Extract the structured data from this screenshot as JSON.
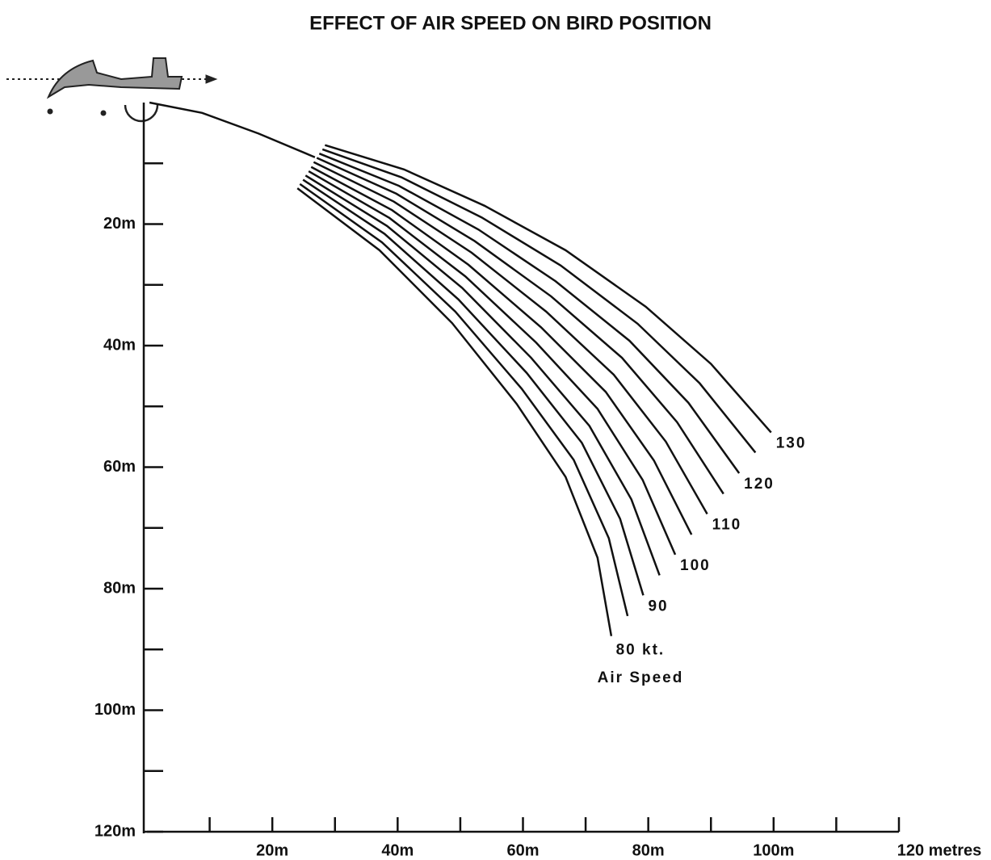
{
  "chart_data": {
    "type": "line",
    "title": "EFFECT OF AIR SPEED ON BIRD POSITION",
    "annotation": "Air Speed",
    "color": "#111111",
    "xlim": [
      0,
      120
    ],
    "ylim": [
      0,
      120
    ],
    "y_inverted": true,
    "xticks": [
      20,
      40,
      60,
      80,
      100,
      {
        "value": 120,
        "label": "120 metres"
      }
    ],
    "xminor": [
      10,
      30,
      50,
      70,
      90,
      110
    ],
    "yticks": [
      {
        "value": 20,
        "label": "20m"
      },
      {
        "value": 40,
        "label": "40m"
      },
      {
        "value": 60,
        "label": "60m"
      },
      {
        "value": 80,
        "label": "80m"
      },
      {
        "value": 100,
        "label": "100m"
      },
      {
        "value": 120,
        "label": "120m"
      }
    ],
    "yminor": [
      10,
      30,
      50,
      70,
      90,
      110
    ],
    "xtick_labels": [
      "20m",
      "40m",
      "60m",
      "80m",
      "100m"
    ],
    "series": [
      {
        "name": "80 kt.",
        "x": [
          24.0,
          37.1,
          48.7,
          59.0,
          66.8,
          71.9,
          74.1
        ],
        "values": [
          14.1,
          24.3,
          36.3,
          49.6,
          61.6,
          74.9,
          87.8
        ]
      },
      {
        "name": null,
        "x": [
          24.4,
          37.5,
          49.2,
          59.8,
          68.1,
          73.7,
          76.7
        ],
        "values": [
          13.4,
          23.0,
          34.4,
          47.1,
          58.8,
          71.7,
          84.5
        ]
      },
      {
        "name": "90",
        "x": [
          24.9,
          37.9,
          49.7,
          60.6,
          69.4,
          75.5,
          79.2
        ],
        "values": [
          12.7,
          21.6,
          32.4,
          44.5,
          56.0,
          68.5,
          81.1
        ]
      },
      {
        "name": null,
        "x": [
          25.3,
          38.3,
          50.3,
          61.3,
          70.6,
          77.3,
          81.8
        ],
        "values": [
          12.0,
          20.3,
          30.5,
          42.0,
          53.2,
          65.3,
          77.8
        ]
      },
      {
        "name": "100",
        "x": [
          25.8,
          38.7,
          50.8,
          62.1,
          71.9,
          79.1,
          84.3
        ],
        "values": [
          11.3,
          19.0,
          28.6,
          39.5,
          50.4,
          62.1,
          74.4
        ]
      },
      {
        "name": null,
        "x": [
          26.2,
          39.1,
          51.3,
          62.9,
          73.2,
          80.9,
          86.9
        ],
        "values": [
          10.6,
          17.7,
          26.7,
          37.0,
          47.6,
          58.9,
          71.1
        ]
      },
      {
        "name": "110",
        "x": [
          26.6,
          39.4,
          51.8,
          63.7,
          74.5,
          82.8,
          89.4
        ],
        "values": [
          9.8,
          16.3,
          24.7,
          34.4,
          44.8,
          55.8,
          67.7
        ]
      },
      {
        "name": null,
        "x": [
          27.1,
          39.8,
          52.3,
          64.5,
          75.8,
          84.6,
          92.0
        ],
        "values": [
          9.1,
          15.0,
          22.8,
          31.9,
          42.0,
          52.6,
          64.4
        ]
      },
      {
        "name": "120",
        "x": [
          27.5,
          40.2,
          52.9,
          65.2,
          77.0,
          86.4,
          94.5
        ],
        "values": [
          8.4,
          13.7,
          20.9,
          29.4,
          39.2,
          49.4,
          61.0
        ]
      },
      {
        "name": null,
        "x": [
          28.0,
          40.6,
          53.4,
          66.0,
          78.3,
          88.2,
          97.1
        ],
        "values": [
          7.7,
          12.3,
          18.9,
          26.8,
          36.4,
          46.2,
          57.6
        ]
      },
      {
        "name": "130",
        "x": [
          28.4,
          41.0,
          53.9,
          66.8,
          79.6,
          90.0,
          99.6
        ],
        "values": [
          7.0,
          11.0,
          17.0,
          24.3,
          33.6,
          43.0,
          54.3
        ]
      },
      {
        "name": null,
        "x": [
          0.4,
          8.8,
          17.8,
          26.8
        ],
        "values": [
          0,
          1.7,
          5.1,
          9.0
        ]
      }
    ]
  }
}
